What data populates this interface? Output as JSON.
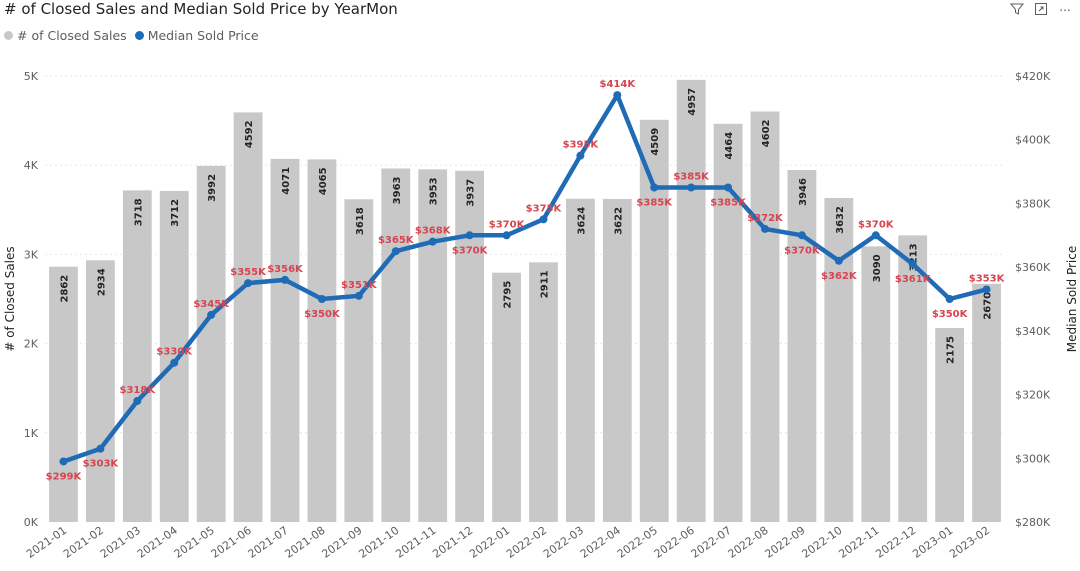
{
  "chart_data": {
    "type": "bar+line",
    "title": "# of Closed Sales and Median Sold Price by YearMon",
    "legend": [
      {
        "name": "# of Closed Sales",
        "color": "#c8c8c8"
      },
      {
        "name": "Median Sold Price",
        "color": "#1f6bb5"
      }
    ],
    "categories": [
      "2021-01",
      "2021-02",
      "2021-03",
      "2021-04",
      "2021-05",
      "2021-06",
      "2021-07",
      "2021-08",
      "2021-09",
      "2021-10",
      "2021-11",
      "2021-12",
      "2022-01",
      "2022-02",
      "2022-03",
      "2022-04",
      "2022-05",
      "2022-06",
      "2022-07",
      "2022-08",
      "2022-09",
      "2022-10",
      "2022-11",
      "2022-12",
      "2023-01",
      "2023-02"
    ],
    "series": [
      {
        "name": "# of Closed Sales",
        "type": "bar",
        "axis": "left",
        "values": [
          2862,
          2934,
          3718,
          3712,
          3992,
          4592,
          4071,
          4065,
          3618,
          3963,
          3953,
          3937,
          2795,
          2911,
          3624,
          3622,
          4509,
          4957,
          4464,
          4602,
          3946,
          3632,
          3090,
          3213,
          2175,
          2670
        ],
        "labels": [
          "2862",
          "2934",
          "3718",
          "3712",
          "3992",
          "4592",
          "4071",
          "4065",
          "3618",
          "3963",
          "3953",
          "3937",
          "2795",
          "2911",
          "3624",
          "3622",
          "4509",
          "4957",
          "4464",
          "4602",
          "3946",
          "3632",
          "3090",
          "3213",
          "2175",
          "2670"
        ]
      },
      {
        "name": "Median Sold Price",
        "type": "line",
        "axis": "right",
        "values": [
          299,
          303,
          318,
          330,
          345,
          355,
          356,
          350,
          351,
          365,
          368,
          370,
          370,
          375,
          395,
          414,
          385,
          385,
          385,
          372,
          370,
          362,
          370,
          361,
          350,
          353
        ],
        "labels": [
          "$299K",
          "$303K",
          "$318K",
          "$330K",
          "$345K",
          "$355K",
          "$356K",
          "$350K",
          "$351K",
          "$365K",
          "$368K",
          "$370K",
          "$370K",
          "$375K",
          "$395K",
          "$414K",
          "$385K",
          "$385K",
          "$385K",
          "$372K",
          "$370K",
          "$362K",
          "$370K",
          "$361K",
          "$350K",
          "$353K"
        ]
      }
    ],
    "left_axis": {
      "label": "# of Closed Sales",
      "ylim": [
        0,
        5000
      ],
      "ticks": [
        0,
        1000,
        2000,
        3000,
        4000,
        5000
      ],
      "tick_labels": [
        "0K",
        "1K",
        "2K",
        "3K",
        "4K",
        "5K"
      ]
    },
    "right_axis": {
      "label": "Median Sold Price",
      "ylim": [
        280,
        420
      ],
      "ticks": [
        280,
        300,
        320,
        340,
        360,
        380,
        400,
        420
      ],
      "tick_labels": [
        "$280K",
        "$300K",
        "$320K",
        "$340K",
        "$360K",
        "$380K",
        "$400K",
        "$420K"
      ]
    },
    "grid": true
  },
  "toolbar": {
    "filter_icon": "filter-icon",
    "focus_icon": "focus-mode-icon",
    "more_icon": "more-options-icon",
    "more_label": "..."
  }
}
